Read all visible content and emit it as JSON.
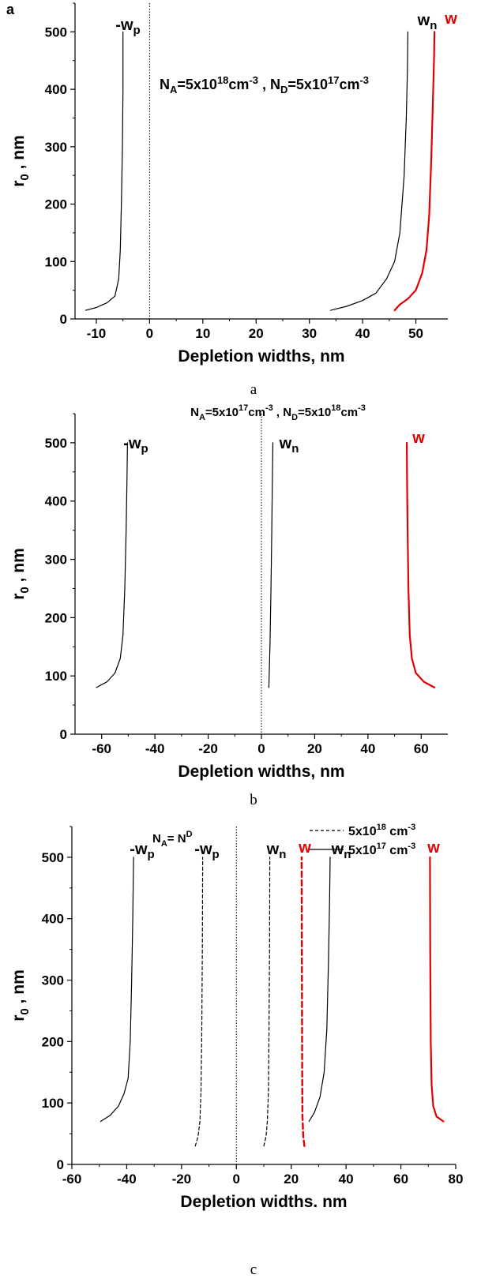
{
  "figure": {
    "panel_letter_a": "a",
    "captions": [
      "a",
      "b",
      "c"
    ]
  },
  "chart_data": [
    {
      "type": "line",
      "title": "",
      "xlabel": "Depletion widths, nm",
      "ylabel": "r",
      "ylabel_sub": "0",
      "ylabel_suffix": " , nm",
      "xlim": [
        -14,
        56
      ],
      "ylim": [
        0,
        550
      ],
      "xticks": [
        -10,
        0,
        10,
        20,
        30,
        40,
        50
      ],
      "yticks": [
        0,
        100,
        200,
        300,
        400,
        500
      ],
      "annotation": {
        "p1": "N",
        "s1": "A",
        "p2": "=5x10",
        "s2": "18",
        "p3": "cm",
        "s3": "-3",
        "p4": " , N",
        "s4": "D",
        "p5": "=5x10",
        "s5": "17",
        "p6": "cm",
        "s6": "-3"
      },
      "series": [
        {
          "label_main": "-w",
          "label_sub": "p",
          "color": "#000000",
          "dashed": false,
          "width": 1.2,
          "points": [
            [
              -12,
              15
            ],
            [
              -10,
              20
            ],
            [
              -8,
              28
            ],
            [
              -6.5,
              40
            ],
            [
              -5.8,
              70
            ],
            [
              -5.5,
              120
            ],
            [
              -5.3,
              200
            ],
            [
              -5.1,
              300
            ],
            [
              -5.0,
              400
            ],
            [
              -5.0,
              500
            ]
          ]
        },
        {
          "label_main": "w",
          "label_sub": "n",
          "color": "#000000",
          "dashed": false,
          "width": 1.2,
          "points": [
            [
              34,
              15
            ],
            [
              37,
              22
            ],
            [
              40,
              32
            ],
            [
              42.5,
              45
            ],
            [
              44.5,
              70
            ],
            [
              46,
              100
            ],
            [
              47,
              150
            ],
            [
              47.8,
              250
            ],
            [
              48.2,
              350
            ],
            [
              48.4,
              430
            ],
            [
              48.5,
              500
            ]
          ]
        },
        {
          "label_main": "w",
          "label_sub": "",
          "color": "#e00000",
          "dashed": false,
          "width": 2.2,
          "points": [
            [
              46,
              15
            ],
            [
              47,
              25
            ],
            [
              48.5,
              35
            ],
            [
              50,
              50
            ],
            [
              51.2,
              80
            ],
            [
              52,
              120
            ],
            [
              52.5,
              180
            ],
            [
              52.9,
              280
            ],
            [
              53.2,
              380
            ],
            [
              53.4,
              450
            ],
            [
              53.5,
              500
            ]
          ]
        }
      ]
    },
    {
      "type": "line",
      "title": "",
      "xlabel": "Depletion widths, nm",
      "ylabel": "r",
      "ylabel_sub": "0",
      "ylabel_suffix": " , nm",
      "xlim": [
        -70,
        70
      ],
      "ylim": [
        0,
        550
      ],
      "xticks": [
        -60,
        -40,
        -20,
        0,
        20,
        40,
        60
      ],
      "yticks": [
        0,
        100,
        200,
        300,
        400,
        500
      ],
      "annotation": {
        "p1": "N",
        "s1": "A",
        "p2": "=5x10",
        "s2": "17",
        "p3": "cm",
        "s3": "-3",
        "p4": " , N",
        "s4": "D",
        "p5": "=5x10",
        "s5": "18",
        "p6": "cm",
        "s6": "-3"
      },
      "series": [
        {
          "label_main": "-w",
          "label_sub": "p",
          "color": "#000000",
          "dashed": false,
          "width": 1.2,
          "points": [
            [
              -62,
              80
            ],
            [
              -58,
              90
            ],
            [
              -55,
              105
            ],
            [
              -53,
              130
            ],
            [
              -52,
              170
            ],
            [
              -51.3,
              250
            ],
            [
              -50.8,
              350
            ],
            [
              -50.5,
              430
            ],
            [
              -50.3,
              500
            ]
          ]
        },
        {
          "label_main": "w",
          "label_sub": "n",
          "color": "#000000",
          "dashed": false,
          "width": 1.2,
          "points": [
            [
              2.8,
              80
            ],
            [
              3.2,
              150
            ],
            [
              3.6,
              250
            ],
            [
              3.9,
              350
            ],
            [
              4.1,
              430
            ],
            [
              4.3,
              500
            ]
          ]
        },
        {
          "label_main": "w",
          "label_sub": "",
          "color": "#e00000",
          "dashed": false,
          "width": 2.2,
          "points": [
            [
              65,
              80
            ],
            [
              61,
              90
            ],
            [
              58,
              105
            ],
            [
              56.5,
              130
            ],
            [
              55.7,
              170
            ],
            [
              55.2,
              250
            ],
            [
              54.9,
              350
            ],
            [
              54.7,
              430
            ],
            [
              54.6,
              500
            ]
          ]
        }
      ]
    },
    {
      "type": "line",
      "title": "",
      "xlabel": "Depletion widths. nm",
      "ylabel": "r",
      "ylabel_sub": "0",
      "ylabel_suffix": " , nm",
      "xlim": [
        -60,
        80
      ],
      "ylim": [
        0,
        550
      ],
      "xticks": [
        -60,
        -40,
        -20,
        0,
        20,
        40,
        60,
        80
      ],
      "yticks": [
        0,
        100,
        200,
        300,
        400,
        500
      ],
      "annotation": {
        "p1": "N",
        "s1": "A",
        "p2": "= N",
        "s2": "D"
      },
      "legend": [
        {
          "label": "5x10",
          "sup": "18",
          "unit": " cm",
          "unit_sup": "-3",
          "dashed": true
        },
        {
          "label": "5x10",
          "sup": "17",
          "unit": " cm",
          "unit_sup": "-3",
          "dashed": false
        }
      ],
      "series": [
        {
          "label_main": "-w",
          "label_sub": "p",
          "color": "#000000",
          "dashed": false,
          "width": 1.2,
          "points": [
            [
              -49.5,
              70
            ],
            [
              -46,
              80
            ],
            [
              -43,
              95
            ],
            [
              -41,
              115
            ],
            [
              -39.5,
              140
            ],
            [
              -38.7,
              200
            ],
            [
              -38.2,
              300
            ],
            [
              -37.8,
              400
            ],
            [
              -37.5,
              500
            ]
          ]
        },
        {
          "label_main": "-w",
          "label_sub": "p",
          "color": "#000000",
          "dashed": true,
          "width": 1.2,
          "points": [
            [
              -15,
              30
            ],
            [
              -14,
              45
            ],
            [
              -13.3,
              70
            ],
            [
              -12.9,
              120
            ],
            [
              -12.6,
              220
            ],
            [
              -12.4,
              350
            ],
            [
              -12.3,
              500
            ]
          ]
        },
        {
          "label_main": "w",
          "label_sub": "n",
          "color": "#000000",
          "dashed": true,
          "width": 1.2,
          "points": [
            [
              10,
              30
            ],
            [
              10.8,
              45
            ],
            [
              11.3,
              70
            ],
            [
              11.7,
              120
            ],
            [
              11.9,
              220
            ],
            [
              12.1,
              350
            ],
            [
              12.2,
              500
            ]
          ]
        },
        {
          "label_main": "w",
          "label_sub": "",
          "color": "#e00000",
          "dashed": true,
          "width": 2.4,
          "points": [
            [
              24.8,
              30
            ],
            [
              24.4,
              45
            ],
            [
              24.1,
              80
            ],
            [
              24.0,
              150
            ],
            [
              23.9,
              300
            ],
            [
              23.8,
              500
            ]
          ]
        },
        {
          "label_main": "w",
          "label_sub": "n",
          "color": "#000000",
          "dashed": false,
          "width": 1.2,
          "points": [
            [
              26.5,
              70
            ],
            [
              28.5,
              85
            ],
            [
              30.5,
              110
            ],
            [
              32,
              150
            ],
            [
              33,
              220
            ],
            [
              33.6,
              330
            ],
            [
              34,
              430
            ],
            [
              34.2,
              500
            ]
          ]
        },
        {
          "label_main": "w",
          "label_sub": "",
          "color": "#e00000",
          "dashed": false,
          "width": 2.2,
          "points": [
            [
              75.5,
              70
            ],
            [
              73,
              78
            ],
            [
              71.8,
              95
            ],
            [
              71.2,
              130
            ],
            [
              70.9,
              200
            ],
            [
              70.7,
              350
            ],
            [
              70.6,
              500
            ]
          ]
        }
      ]
    }
  ]
}
